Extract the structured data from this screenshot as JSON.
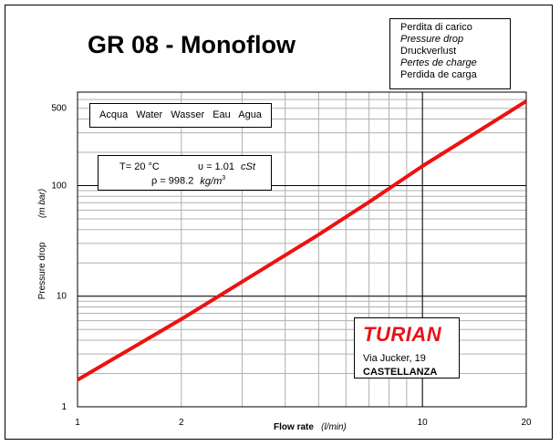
{
  "title": "GR 08 - Monoflow",
  "legend": {
    "items": [
      {
        "text": "Perdita di carico",
        "italic": false
      },
      {
        "text": "Pressure drop",
        "italic": true
      },
      {
        "text": "Druckverlust",
        "italic": false
      },
      {
        "text": "Pertes de charge",
        "italic": true
      },
      {
        "text": "Perdida de carga",
        "italic": false
      }
    ]
  },
  "fluid": {
    "words": [
      "Acqua",
      "Water",
      "Wasser",
      "Eau",
      "Agua"
    ]
  },
  "properties": {
    "temperature": "T= 20 °C",
    "viscosity_symbol": "υ = 1.01",
    "viscosity_unit": "cSt",
    "density_symbol": "ρ = 998.2",
    "density_unit": "kg/m",
    "density_unit_exp": "3"
  },
  "brand": {
    "logo_text": "TURIAN",
    "address": "Via Jucker, 19",
    "city": "CASTELLANZA",
    "logo_color": "#e8121b"
  },
  "chart_data": {
    "type": "line",
    "title": "GR 08 - Monoflow",
    "xlabel": "Flow rate",
    "xunit": "(l/min)",
    "ylabel": "Pressure drop",
    "yunit": "(m bar)",
    "x_scale": "log",
    "y_scale": "log",
    "xlim": [
      1,
      20
    ],
    "ylim": [
      1,
      700
    ],
    "x_ticks": [
      1,
      2,
      10,
      20
    ],
    "y_ticks": [
      1,
      10,
      100,
      500
    ],
    "grid": true,
    "line_color": "#ee1111",
    "series": [
      {
        "x": [
          1,
          2,
          3,
          5,
          7,
          10,
          15,
          20
        ],
        "y": [
          1.75,
          6.2,
          13.5,
          36,
          71,
          150,
          330,
          580
        ]
      }
    ]
  }
}
